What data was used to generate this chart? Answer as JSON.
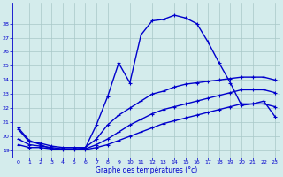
{
  "xlabel": "Graphe des températures (°c)",
  "bg_color": "#d4ecec",
  "line_color": "#0000cc",
  "grid_color": "#a8c8c8",
  "ylim": [
    18.5,
    29.5
  ],
  "xlim": [
    -0.5,
    23.5
  ],
  "yticks": [
    19,
    20,
    21,
    22,
    23,
    24,
    25,
    26,
    27,
    28
  ],
  "xticks": [
    0,
    1,
    2,
    3,
    4,
    5,
    6,
    7,
    8,
    9,
    10,
    11,
    12,
    13,
    14,
    15,
    16,
    17,
    18,
    19,
    20,
    21,
    22,
    23
  ],
  "line1_x": [
    0,
    1,
    2,
    3,
    4,
    5,
    6,
    7,
    8,
    9,
    10,
    11,
    12,
    13,
    14,
    15,
    16,
    17,
    18,
    19,
    20,
    21,
    22,
    23
  ],
  "line1_y": [
    20.6,
    19.7,
    19.4,
    19.1,
    19.1,
    19.1,
    19.15,
    20.8,
    22.8,
    25.2,
    23.8,
    27.2,
    28.2,
    28.3,
    28.6,
    28.4,
    28.0,
    26.7,
    25.2,
    23.8,
    22.2,
    22.3,
    22.5,
    21.4
  ],
  "line2_x": [
    0,
    1,
    2,
    3,
    4,
    5,
    6,
    7,
    8,
    9,
    10,
    11,
    12,
    13,
    14,
    15,
    16,
    17,
    18,
    19,
    20,
    21,
    22,
    23
  ],
  "line2_y": [
    20.5,
    19.6,
    19.5,
    19.3,
    19.2,
    19.2,
    19.2,
    19.8,
    20.8,
    21.5,
    22.0,
    22.5,
    23.0,
    23.2,
    23.5,
    23.7,
    23.8,
    23.9,
    24.0,
    24.1,
    24.2,
    24.2,
    24.2,
    24.0
  ],
  "line3_x": [
    0,
    1,
    2,
    3,
    4,
    5,
    6,
    7,
    8,
    9,
    10,
    11,
    12,
    13,
    14,
    15,
    16,
    17,
    18,
    19,
    20,
    21,
    22,
    23
  ],
  "line3_y": [
    19.8,
    19.4,
    19.3,
    19.2,
    19.1,
    19.1,
    19.1,
    19.4,
    19.8,
    20.3,
    20.8,
    21.2,
    21.6,
    21.9,
    22.1,
    22.3,
    22.5,
    22.7,
    22.9,
    23.1,
    23.3,
    23.3,
    23.3,
    23.1
  ],
  "line4_x": [
    0,
    1,
    2,
    3,
    4,
    5,
    6,
    7,
    8,
    9,
    10,
    11,
    12,
    13,
    14,
    15,
    16,
    17,
    18,
    19,
    20,
    21,
    22,
    23
  ],
  "line4_y": [
    19.4,
    19.2,
    19.2,
    19.1,
    19.05,
    19.05,
    19.05,
    19.2,
    19.4,
    19.7,
    20.0,
    20.3,
    20.6,
    20.9,
    21.1,
    21.3,
    21.5,
    21.7,
    21.9,
    22.1,
    22.3,
    22.3,
    22.3,
    22.1
  ],
  "marker": "+",
  "marker_size": 3,
  "line_width": 1.0
}
